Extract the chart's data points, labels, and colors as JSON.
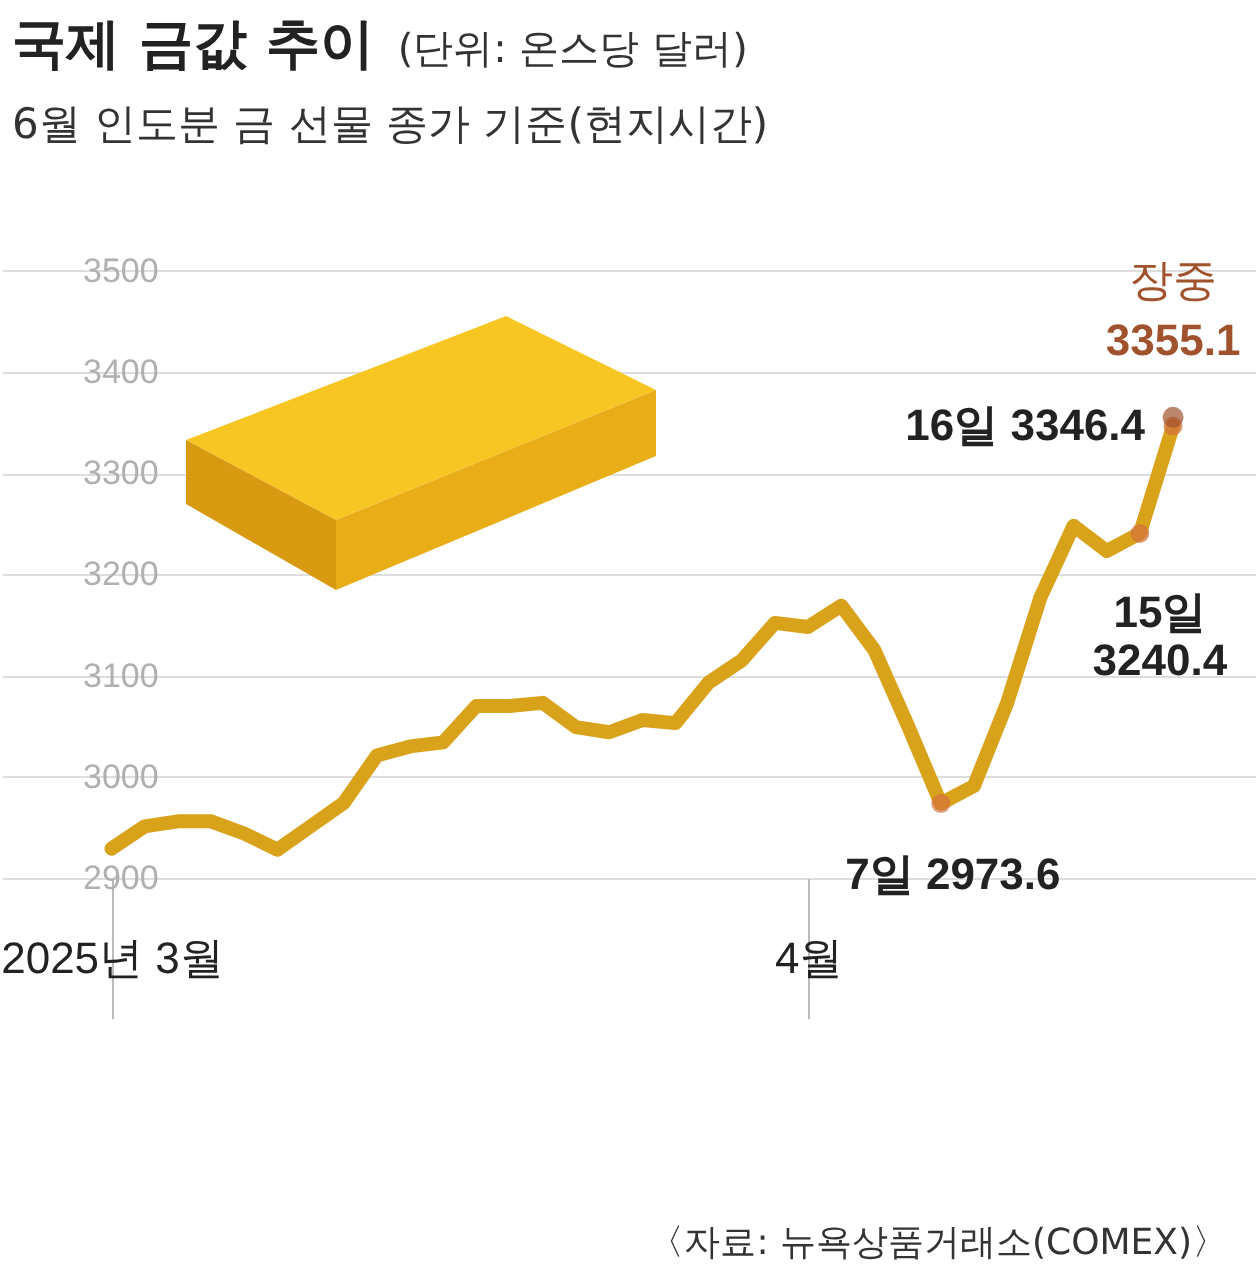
{
  "chart_data": {
    "type": "line",
    "title": "국제 금값 추이",
    "subtitle": "(단위: 온스당 달러)",
    "annotations": [
      "6월 인도분 금 선물 종가 기준(현지시간)",
      "〈자료: 뉴욕상품거래소(COMEX)〉"
    ],
    "categories": [
      "2025년 3월",
      null,
      null,
      null,
      null,
      null,
      null,
      null,
      null,
      null,
      null,
      null,
      null,
      null,
      null,
      null,
      null,
      null,
      null,
      null,
      null,
      "4월",
      null,
      null,
      null,
      null,
      null,
      null,
      null,
      null,
      null,
      null,
      null
    ],
    "series": [
      {
        "type": "line",
        "color": "#d9a21b",
        "values": [
          2929,
          2951,
          2956,
          2956,
          2944,
          2928,
          2951,
          2974,
          3021,
          3030,
          3034,
          3070,
          3070,
          3073,
          3049,
          3044,
          3056,
          3053,
          3093,
          3115,
          3152,
          3148,
          3169,
          3125,
          3051,
          2973.6,
          2991,
          3073,
          3177,
          3248,
          3223,
          3240.4,
          3346.4
        ],
        "value_labels": [
          null,
          null,
          null,
          null,
          null,
          null,
          null,
          null,
          null,
          null,
          null,
          null,
          null,
          null,
          null,
          null,
          null,
          null,
          null,
          null,
          null,
          null,
          null,
          null,
          null,
          "7일 2973.6",
          null,
          null,
          null,
          null,
          null,
          "15일 3240.4",
          "16일 3346.4"
        ]
      },
      {
        "type": "scatter",
        "name": "장중",
        "color": "#a0522d",
        "values": [
          null,
          null,
          null,
          null,
          null,
          null,
          null,
          null,
          null,
          null,
          null,
          null,
          null,
          null,
          null,
          null,
          null,
          null,
          null,
          null,
          null,
          null,
          null,
          null,
          null,
          null,
          null,
          null,
          null,
          null,
          null,
          null,
          3355.1
        ],
        "value_labels": [
          null,
          null,
          null,
          null,
          null,
          null,
          null,
          null,
          null,
          null,
          null,
          null,
          null,
          null,
          null,
          null,
          null,
          null,
          null,
          null,
          null,
          null,
          null,
          null,
          null,
          null,
          null,
          null,
          null,
          null,
          null,
          null,
          "3355.1"
        ]
      }
    ],
    "ylim": [
      2900,
      3550
    ],
    "yticks": [
      2900,
      3000,
      3100,
      3200,
      3300,
      3400,
      3500
    ],
    "grid": "y"
  }
}
